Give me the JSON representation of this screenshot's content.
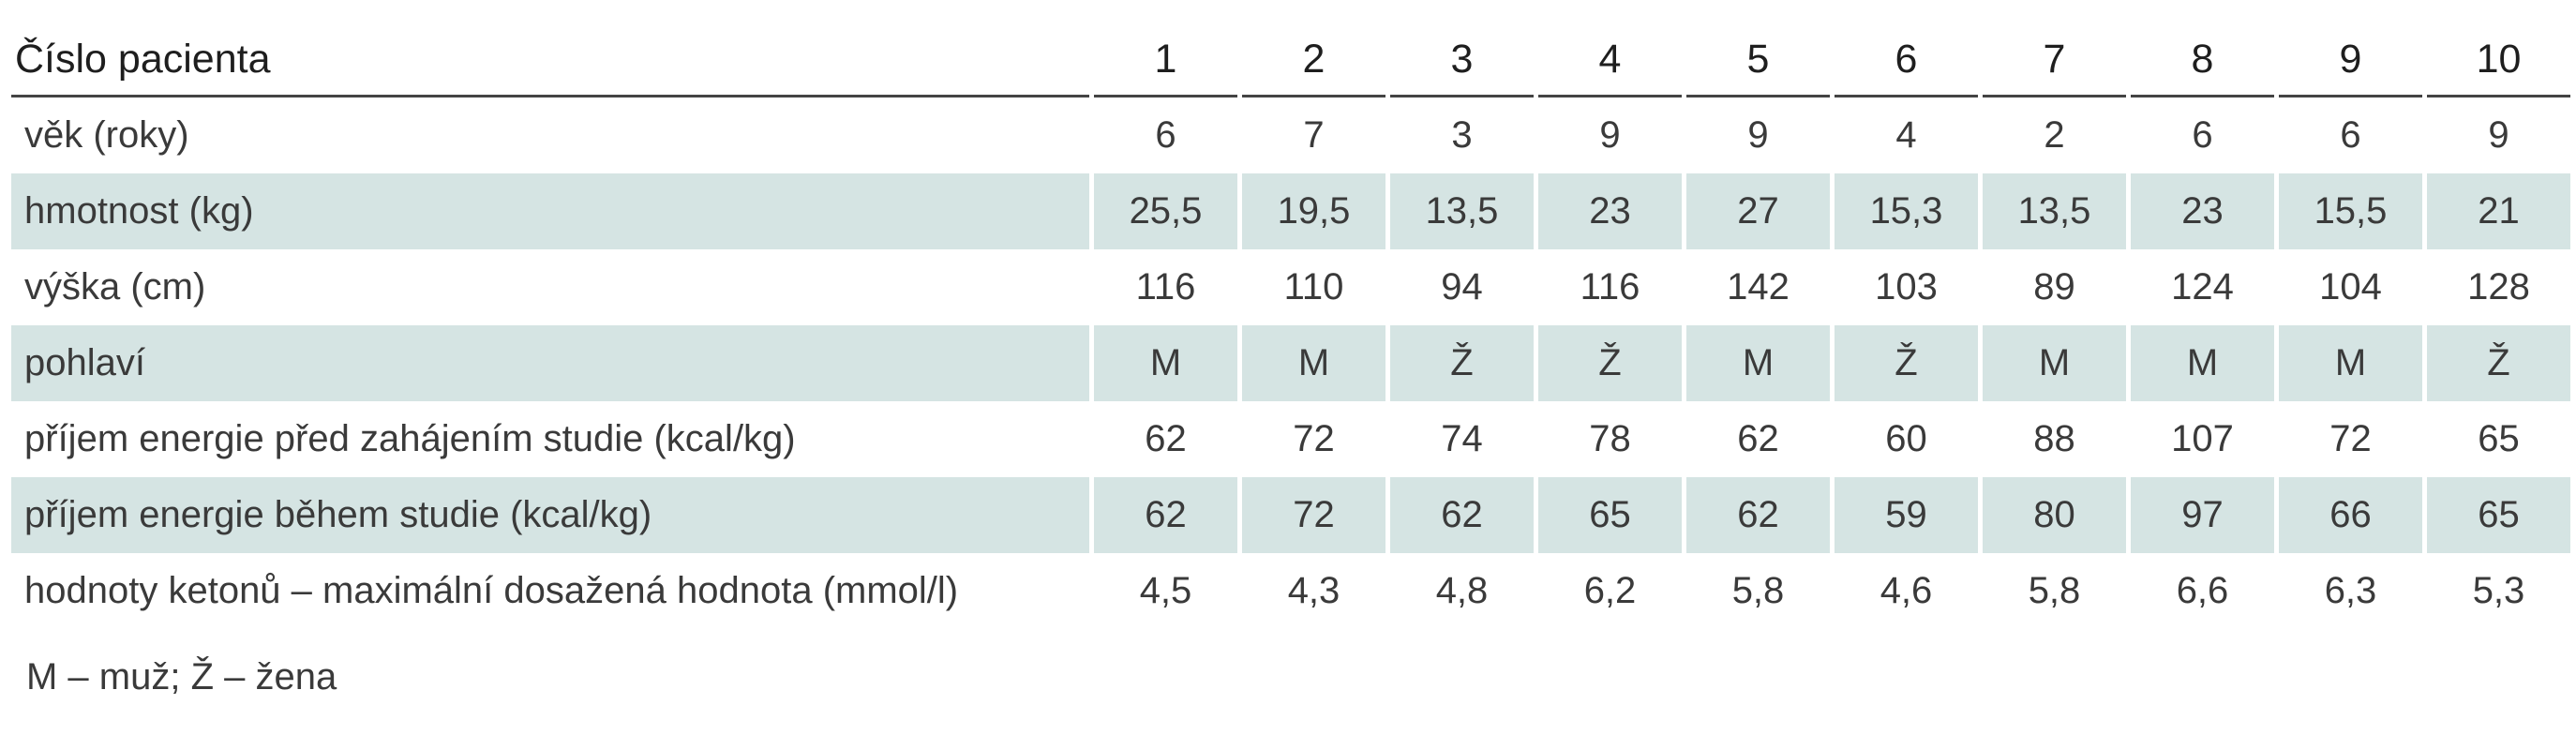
{
  "table": {
    "header": {
      "label": "Číslo pacienta",
      "patients": [
        "1",
        "2",
        "3",
        "4",
        "5",
        "6",
        "7",
        "8",
        "9",
        "10"
      ]
    },
    "rows": [
      {
        "label": "věk (roky)",
        "values": [
          "6",
          "7",
          "3",
          "9",
          "9",
          "4",
          "2",
          "6",
          "6",
          "9"
        ]
      },
      {
        "label": "hmotnost (kg)",
        "values": [
          "25,5",
          "19,5",
          "13,5",
          "23",
          "27",
          "15,3",
          "13,5",
          "23",
          "15,5",
          "21"
        ]
      },
      {
        "label": "výška (cm)",
        "values": [
          "116",
          "110",
          "94",
          "116",
          "142",
          "103",
          "89",
          "124",
          "104",
          "128"
        ]
      },
      {
        "label": "pohlaví",
        "values": [
          "M",
          "M",
          "Ž",
          "Ž",
          "M",
          "Ž",
          "M",
          "M",
          "M",
          "Ž"
        ]
      },
      {
        "label": "příjem energie před zahájením studie (kcal/kg)",
        "values": [
          "62",
          "72",
          "74",
          "78",
          "62",
          "60",
          "88",
          "107",
          "72",
          "65"
        ]
      },
      {
        "label": "příjem energie během studie (kcal/kg)",
        "values": [
          "62",
          "72",
          "62",
          "65",
          "62",
          "59",
          "80",
          "97",
          "66",
          "65"
        ]
      },
      {
        "label": "hodnoty ketonů – maximální dosažená hodnota (mmol/l)",
        "values": [
          "4,5",
          "4,3",
          "4,8",
          "6,2",
          "5,8",
          "4,6",
          "5,8",
          "6,6",
          "6,3",
          "5,3"
        ]
      }
    ]
  },
  "footnote": "M – muž; Ž – žena",
  "colors": {
    "row_shade": "#d5e4e3",
    "text": "#3a3a3a",
    "rule": "#444444"
  }
}
